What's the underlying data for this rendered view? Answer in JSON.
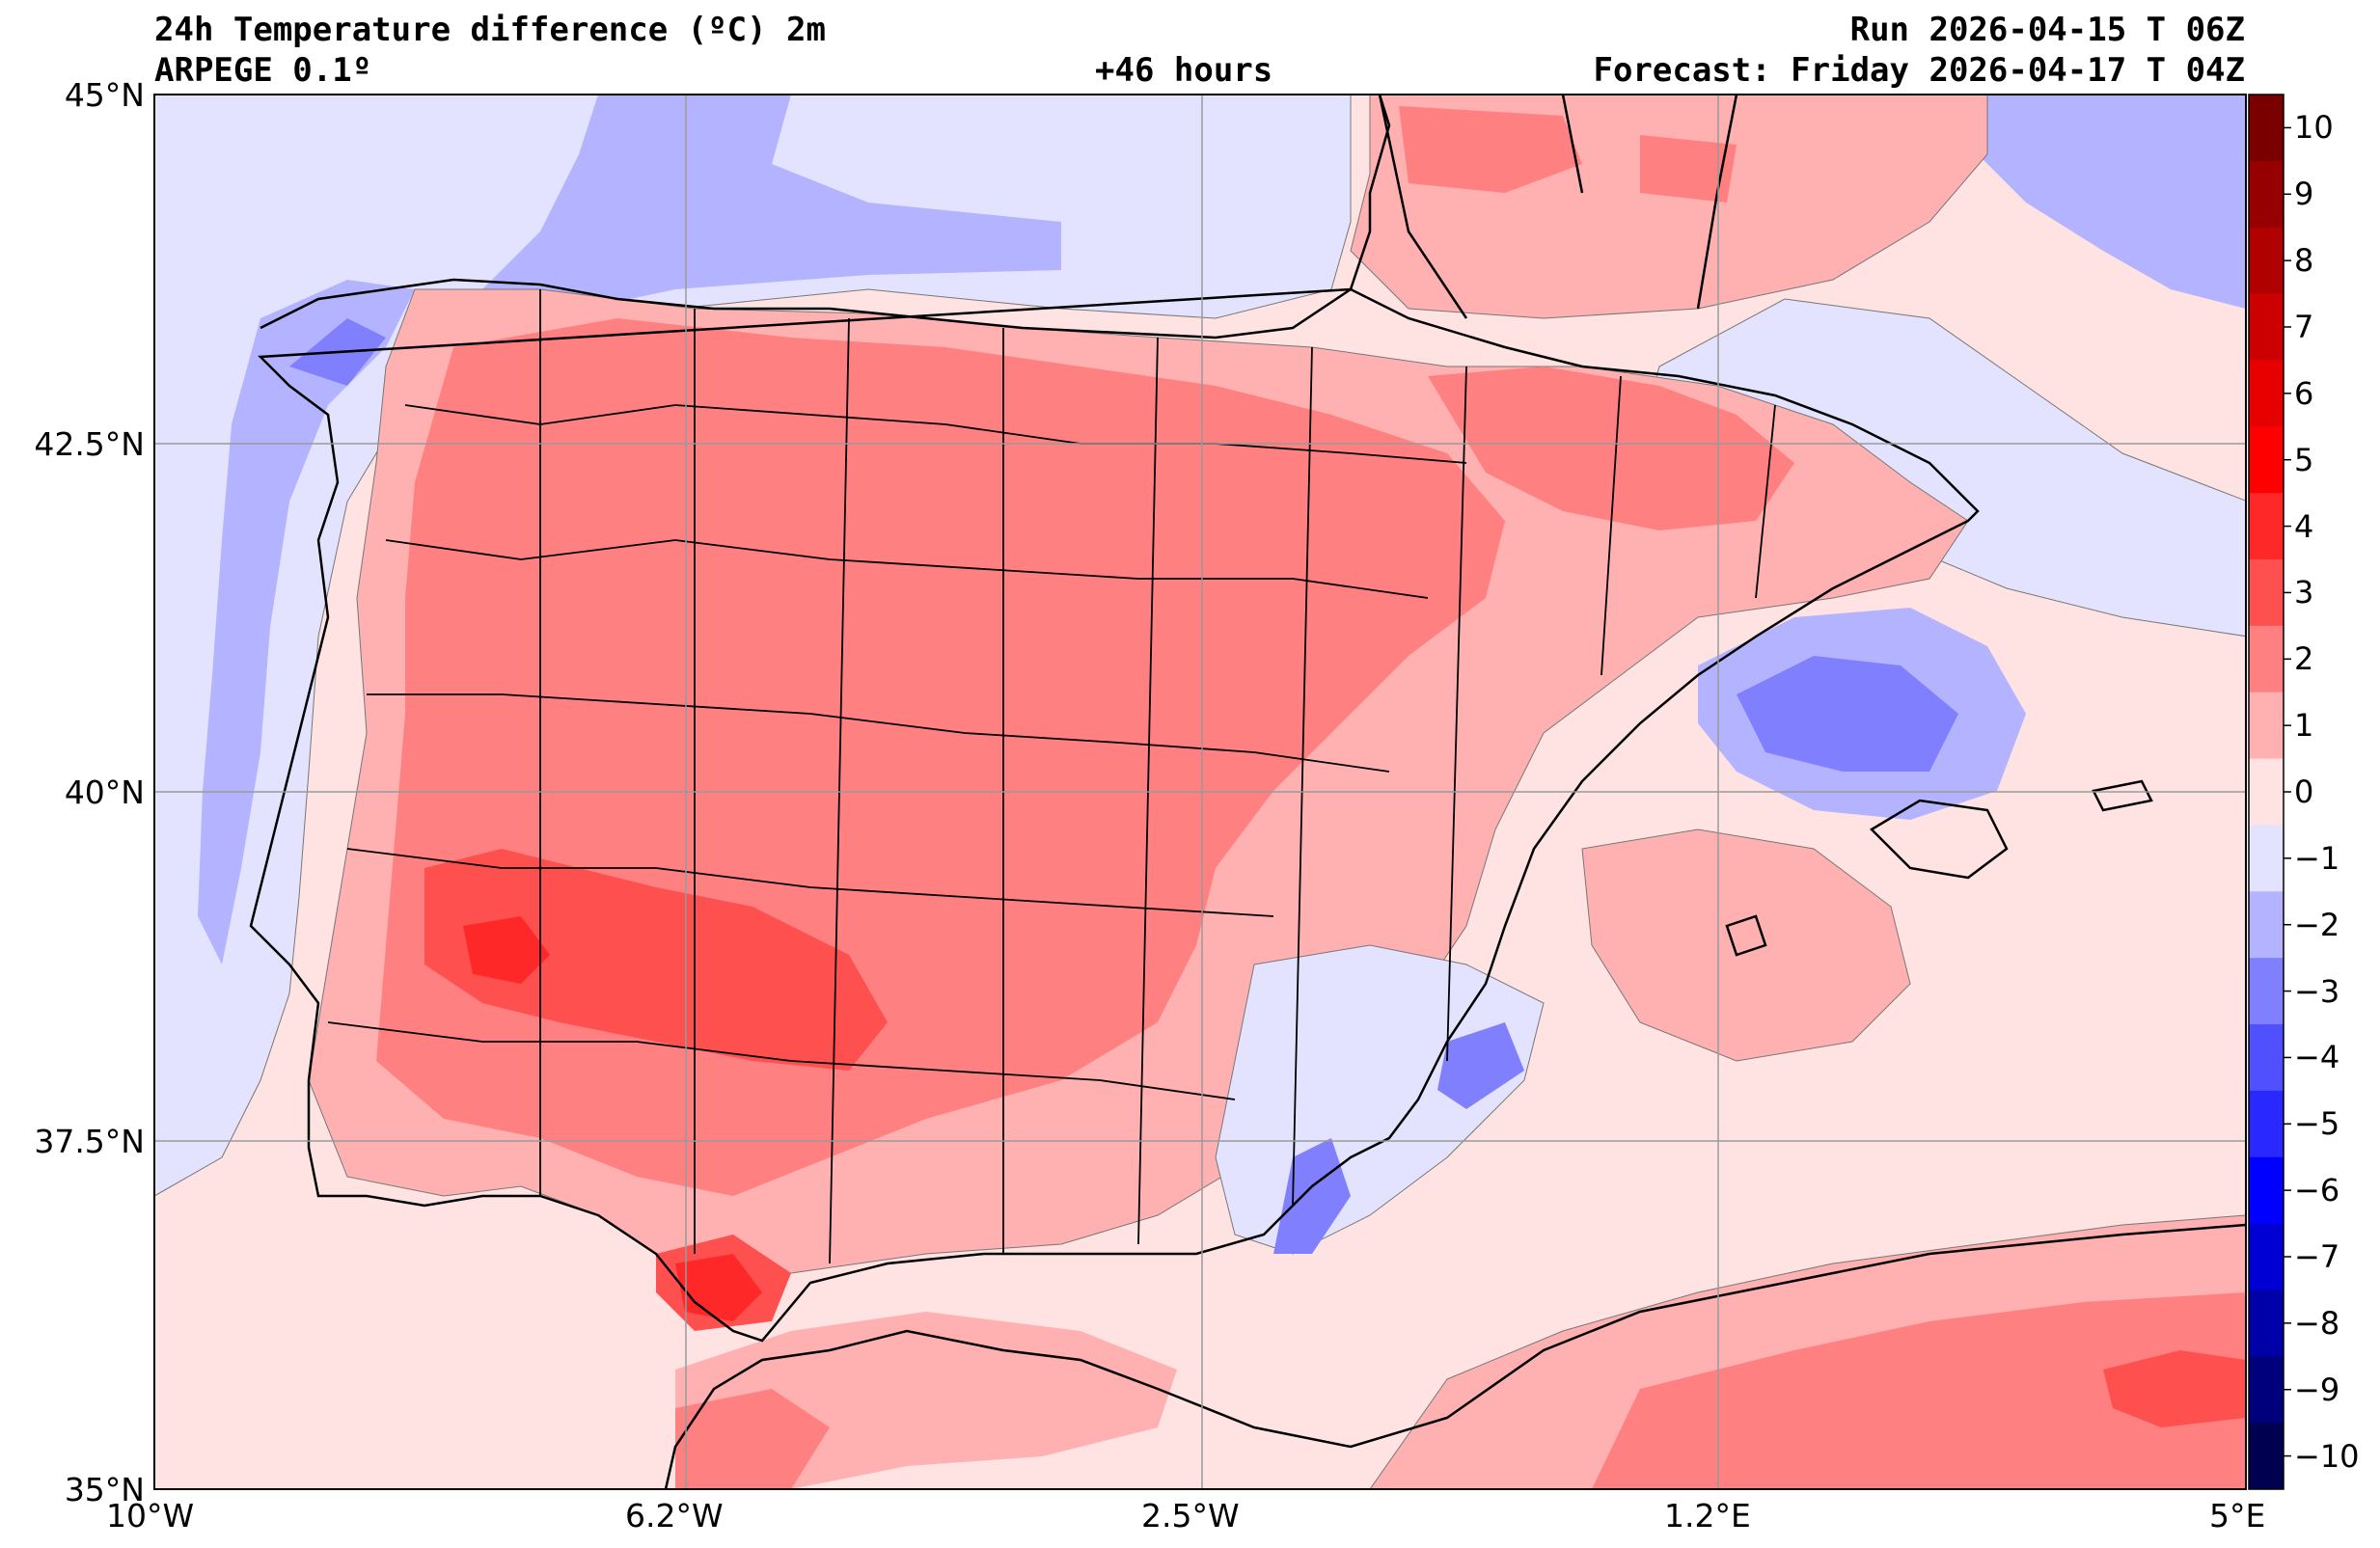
{
  "title": {
    "line1_left": "24h Temperature difference (ºC) 2m",
    "line2_left": "ARPEGE 0.1º",
    "line2_center": "+46 hours",
    "line1_right": "Run 2026-04-15 T 06Z",
    "line2_right": "Forecast: Friday 2026-04-17 T 04Z"
  },
  "axes": {
    "lat_labels": [
      "45°N",
      "42.5°N",
      "40°N",
      "37.5°N",
      "35°N"
    ],
    "lon_labels": [
      "10°W",
      "6.2°W",
      "2.5°W",
      "1.2°E",
      "5°E"
    ]
  },
  "colorbar": {
    "labels": [
      "10",
      "9",
      "8",
      "7",
      "6",
      "5",
      "4",
      "3",
      "2",
      "1",
      "0",
      "−1",
      "−2",
      "−3",
      "−4",
      "−5",
      "−6",
      "−7",
      "−8",
      "−9",
      "−10"
    ],
    "colors_top_to_bottom": [
      "#7a0000",
      "#960000",
      "#b00000",
      "#cc0000",
      "#e60000",
      "#ff0000",
      "#ff2828",
      "#ff5050",
      "#ff8080",
      "#ffb0b0",
      "#ffe2e2",
      "#e3e3ff",
      "#b3b3ff",
      "#8080ff",
      "#5050ff",
      "#2828ff",
      "#0000ff",
      "#0000d4",
      "#0000a8",
      "#00007c",
      "#000050"
    ]
  },
  "colors": {
    "sea_neutral": "#ffe2e2",
    "warm1": "#ffb0b0",
    "warm2": "#ff8080",
    "warm3": "#ff5050",
    "warm4": "#ff2828",
    "cool1": "#e3e3ff",
    "cool2": "#b3b3ff",
    "cool3": "#8080ff"
  }
}
